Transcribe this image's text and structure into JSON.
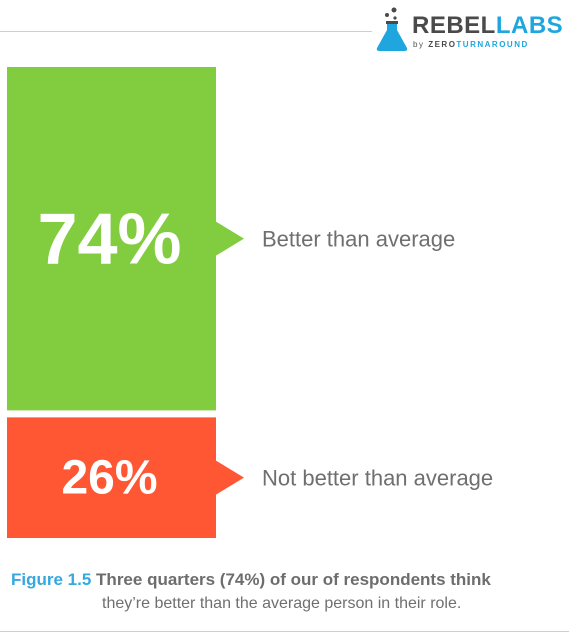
{
  "brand": {
    "name_part1": "REBEL",
    "name_part2": "LABS",
    "byline": "by",
    "company_part1": "ZERO",
    "company_part2": "TURNAROUND"
  },
  "colors": {
    "better": "#82cd3f",
    "not_better": "#ff5733",
    "label_text": "#6f6f6f",
    "caption_accent": "#35a9df"
  },
  "chart_data": {
    "type": "bar",
    "orientation": "stacked-vertical",
    "categories": [
      "Better than average",
      "Not better than average"
    ],
    "values": [
      74,
      26
    ],
    "value_labels": [
      "74%",
      "26%"
    ],
    "unit": "%",
    "legend": "none"
  },
  "caption": {
    "figure_number": "Figure 1.5",
    "title": "Three quarters (74%) of our of respondents think",
    "subtitle": "they’re better than the average person in their role."
  }
}
